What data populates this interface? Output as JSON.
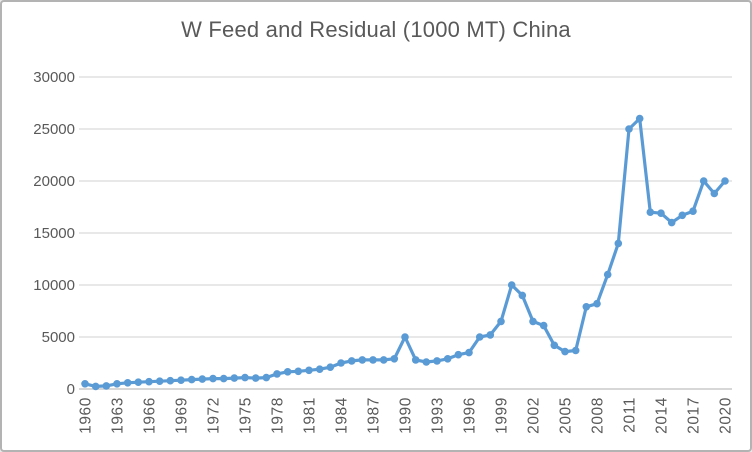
{
  "chart": {
    "title": "W Feed and Residual (1000 MT) China",
    "colors": {
      "line": "#5B9BD5",
      "marker": "#5B9BD5",
      "gridline": "#D9D9D9",
      "axis_line": "#BFBFBF",
      "label_text": "#595959",
      "title_text": "#595959",
      "frame_border": "#B3B3B3",
      "background": "#FFFFFF"
    }
  },
  "chart_data": {
    "type": "line",
    "title": "W Feed and Residual (1000 MT) China",
    "xlabel": "",
    "ylabel": "",
    "legend": "none",
    "grid": "horizontal",
    "marker": "circle",
    "ylim": [
      0,
      30000
    ],
    "y_ticks": [
      0,
      5000,
      10000,
      15000,
      20000,
      25000,
      30000
    ],
    "x_tick_labels": [
      "1960",
      "1963",
      "1966",
      "1969",
      "1972",
      "1975",
      "1978",
      "1981",
      "1984",
      "1987",
      "1990",
      "1993",
      "1996",
      "1999",
      "2002",
      "2005",
      "2008",
      "2011",
      "2014",
      "2017",
      "2020"
    ],
    "x": [
      1960,
      1961,
      1962,
      1963,
      1964,
      1965,
      1966,
      1967,
      1968,
      1969,
      1970,
      1971,
      1972,
      1973,
      1974,
      1975,
      1976,
      1977,
      1978,
      1979,
      1980,
      1981,
      1982,
      1983,
      1984,
      1985,
      1986,
      1987,
      1988,
      1989,
      1990,
      1991,
      1992,
      1993,
      1994,
      1995,
      1996,
      1997,
      1998,
      1999,
      2000,
      2001,
      2002,
      2003,
      2004,
      2005,
      2006,
      2007,
      2008,
      2009,
      2010,
      2011,
      2012,
      2013,
      2014,
      2015,
      2016,
      2017,
      2018,
      2019,
      2020
    ],
    "values": [
      500,
      250,
      300,
      500,
      600,
      650,
      700,
      750,
      800,
      850,
      900,
      950,
      1000,
      1000,
      1050,
      1100,
      1050,
      1100,
      1450,
      1650,
      1700,
      1800,
      1900,
      2100,
      2500,
      2700,
      2800,
      2800,
      2800,
      2900,
      5000,
      2800,
      2600,
      2700,
      2900,
      3300,
      3500,
      5000,
      5200,
      6500,
      10000,
      9000,
      6500,
      6100,
      4200,
      3600,
      3700,
      7900,
      8200,
      11000,
      14000,
      25000,
      26000,
      17000,
      16900,
      16000,
      16700,
      17100,
      20000,
      18800,
      20000
    ]
  }
}
